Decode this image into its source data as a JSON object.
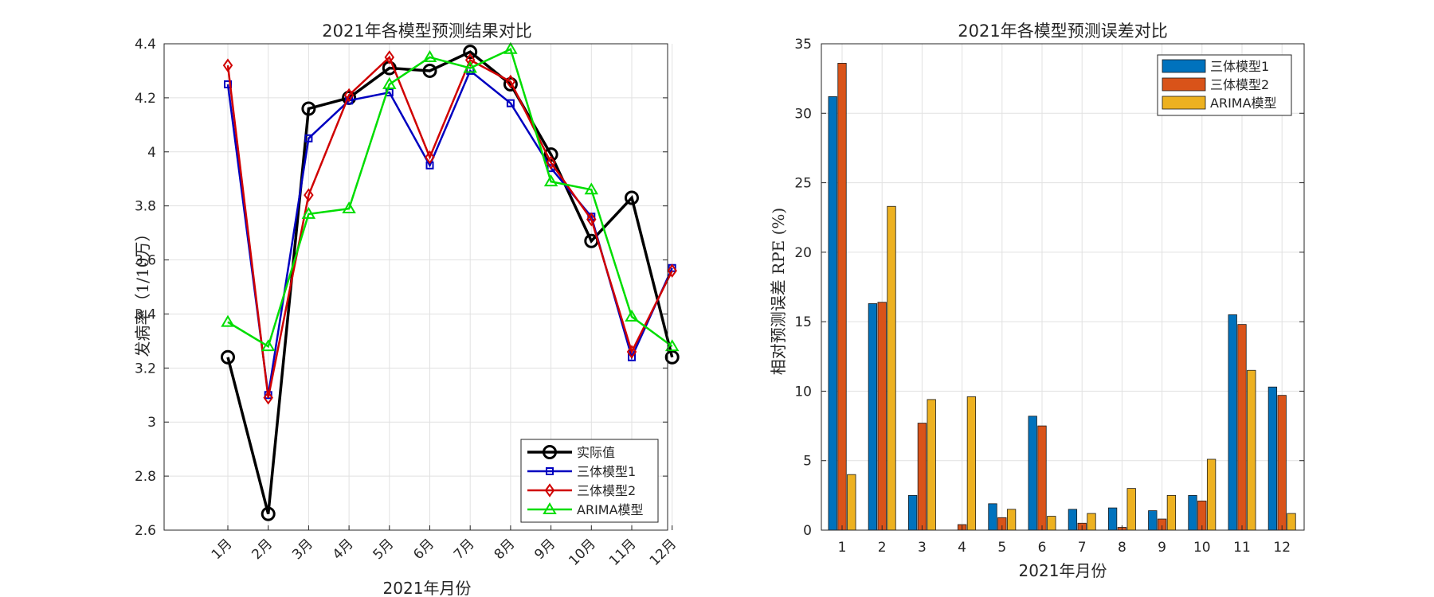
{
  "chart_data": [
    {
      "type": "line",
      "title": "2021年各模型预测结果对比",
      "xlabel": "2021年月份",
      "ylabel": "发病率（1/10万）",
      "categories": [
        "1月",
        "2月",
        "3月",
        "4月",
        "5月",
        "6月",
        "7月",
        "8月",
        "9月",
        "10月",
        "11月",
        "12月"
      ],
      "ylim": [
        2.6,
        4.4
      ],
      "yticks": [
        "2.6",
        "2.8",
        "3",
        "3.2",
        "3.4",
        "3.6",
        "3.8",
        "4",
        "4.2",
        "4.4"
      ],
      "grid": true,
      "legend_position": "bottom-right",
      "series": [
        {
          "name": "实际值",
          "color": "#000000",
          "marker": "circle",
          "values": [
            3.24,
            2.66,
            4.16,
            4.2,
            4.31,
            4.3,
            4.37,
            4.25,
            3.99,
            3.67,
            3.83,
            3.24
          ]
        },
        {
          "name": "三体模型1",
          "color": "#0000c0",
          "marker": "square",
          "values": [
            4.25,
            3.1,
            4.05,
            4.19,
            4.22,
            3.95,
            4.3,
            4.18,
            3.94,
            3.76,
            3.24,
            3.57
          ]
        },
        {
          "name": "三体模型2",
          "color": "#d00000",
          "marker": "diamond",
          "values": [
            4.32,
            3.09,
            3.84,
            4.21,
            4.35,
            3.98,
            4.34,
            4.26,
            3.96,
            3.75,
            3.26,
            3.56
          ]
        },
        {
          "name": "ARIMA模型",
          "color": "#00dd00",
          "marker": "triangle",
          "values": [
            3.37,
            3.28,
            3.77,
            3.79,
            4.25,
            4.35,
            4.31,
            4.38,
            3.89,
            3.86,
            3.39,
            3.28
          ]
        }
      ]
    },
    {
      "type": "bar",
      "title": "2021年各模型预测误差对比",
      "xlabel": "2021年月份",
      "ylabel": "相对预测误差 RPE (%)",
      "categories": [
        "1",
        "2",
        "3",
        "4",
        "5",
        "6",
        "7",
        "8",
        "9",
        "10",
        "11",
        "12"
      ],
      "ylim": [
        0,
        35
      ],
      "yticks": [
        "0",
        "5",
        "10",
        "15",
        "20",
        "25",
        "30",
        "35"
      ],
      "grid": true,
      "legend_position": "top-right",
      "series": [
        {
          "name": "三体模型1",
          "color": "#0072bd",
          "values": [
            31.2,
            16.3,
            2.5,
            0.0,
            1.9,
            8.2,
            1.5,
            1.6,
            1.4,
            2.5,
            15.5,
            10.3
          ]
        },
        {
          "name": "三体模型2",
          "color": "#d95319",
          "values": [
            33.6,
            16.4,
            7.7,
            0.4,
            0.9,
            7.5,
            0.5,
            0.2,
            0.8,
            2.1,
            14.8,
            9.7
          ]
        },
        {
          "name": "ARIMA模型",
          "color": "#edb120",
          "values": [
            4.0,
            23.3,
            9.4,
            9.6,
            1.5,
            1.0,
            1.2,
            3.0,
            2.5,
            5.1,
            11.5,
            1.2
          ]
        }
      ]
    }
  ]
}
